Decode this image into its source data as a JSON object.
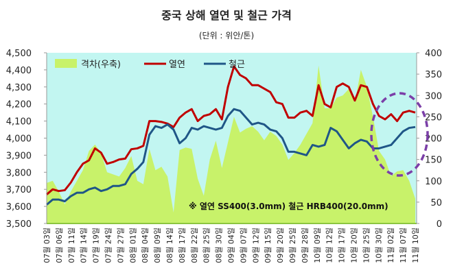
{
  "chart_data": {
    "type": "line",
    "title": "중국 상해 열연 및 철근 가격",
    "subtitle": "(단위 : 위안/톤)",
    "annotation": "※ 열연 SS400(3.0mm) 철근 HRB400(20.0mm)",
    "legend_placement": "top-left",
    "grid": false,
    "y_left": {
      "range": [
        3500,
        4500
      ],
      "ticks": [
        "3,500",
        "3,600",
        "3,700",
        "3,800",
        "3,900",
        "4,000",
        "4,100",
        "4,200",
        "4,300",
        "4,400",
        "4,500"
      ]
    },
    "y_right": {
      "range": [
        0,
        400
      ],
      "ticks": [
        "0",
        "50",
        "100",
        "150",
        "200",
        "250",
        "300",
        "350",
        "400"
      ]
    },
    "x_tick_labels": [
      "07월 03일",
      "07월 06일",
      "07월 11일",
      "07월 14일",
      "07월 19일",
      "07월 24일",
      "07월 27일",
      "08월 01일",
      "08월 04일",
      "08월 09일",
      "08월 14일",
      "08월 17일",
      "08월 22일",
      "08월 25일",
      "08월 30일",
      "09월 04일",
      "09월 07일",
      "09월 12일",
      "09월 15일",
      "09월 20일",
      "09월 25일",
      "09월 28일",
      "10월 09일",
      "10월 12일",
      "10월 17일",
      "10월 20일",
      "10월 25일",
      "10월 30일",
      "11월 02일",
      "11월 07일",
      "11월 10일"
    ],
    "series": [
      {
        "name": "격차(우축)",
        "type": "area",
        "axis": "right",
        "color": "#c8f26a",
        "values": [
          95,
          100,
          75,
          45,
          75,
          100,
          125,
          170,
          185,
          165,
          120,
          115,
          110,
          130,
          158,
          100,
          92,
          175,
          125,
          133,
          110,
          26,
          172,
          178,
          175,
          105,
          65,
          150,
          194,
          130,
          190,
          250,
          213,
          222,
          228,
          215,
          195,
          215,
          205,
          185,
          149,
          165,
          185,
          210,
          235,
          370,
          270,
          270,
          295,
          300,
          315,
          283,
          360,
          320,
          250,
          170,
          150,
          111,
          122,
          125,
          100,
          58
        ]
      },
      {
        "name": "열연",
        "type": "line",
        "axis": "left",
        "color": "#c00000",
        "values": [
          3670,
          3700,
          3690,
          3695,
          3740,
          3800,
          3850,
          3870,
          3940,
          3915,
          3850,
          3860,
          3875,
          3880,
          3935,
          3940,
          3955,
          4100,
          4100,
          4095,
          4085,
          4065,
          4120,
          4150,
          4170,
          4100,
          4130,
          4140,
          4170,
          4110,
          4300,
          4420,
          4370,
          4350,
          4310,
          4310,
          4290,
          4270,
          4210,
          4200,
          4120,
          4120,
          4150,
          4160,
          4130,
          4310,
          4200,
          4180,
          4300,
          4320,
          4300,
          4220,
          4310,
          4300,
          4200,
          4130,
          4110,
          4140,
          4100,
          4150,
          4160,
          4150
        ]
      },
      {
        "name": "철근",
        "type": "line",
        "axis": "left",
        "color": "#1f5687",
        "values": [
          3610,
          3640,
          3640,
          3630,
          3660,
          3680,
          3680,
          3700,
          3710,
          3690,
          3700,
          3720,
          3720,
          3730,
          3790,
          3820,
          3860,
          4020,
          4070,
          4060,
          4080,
          4050,
          3970,
          4000,
          4060,
          4050,
          4070,
          4060,
          4050,
          4060,
          4130,
          4170,
          4160,
          4120,
          4080,
          4090,
          4080,
          4050,
          4040,
          4000,
          3920,
          3920,
          3910,
          3900,
          3960,
          3950,
          3960,
          4060,
          4040,
          3990,
          3940,
          3970,
          3990,
          3980,
          3940,
          3940,
          3950,
          3960,
          4000,
          4040,
          4060,
          4065
        ]
      }
    ],
    "highlight": {
      "shape": "dashed-ellipse",
      "color": "#7b3fa8",
      "covers": "11월 구간"
    }
  }
}
